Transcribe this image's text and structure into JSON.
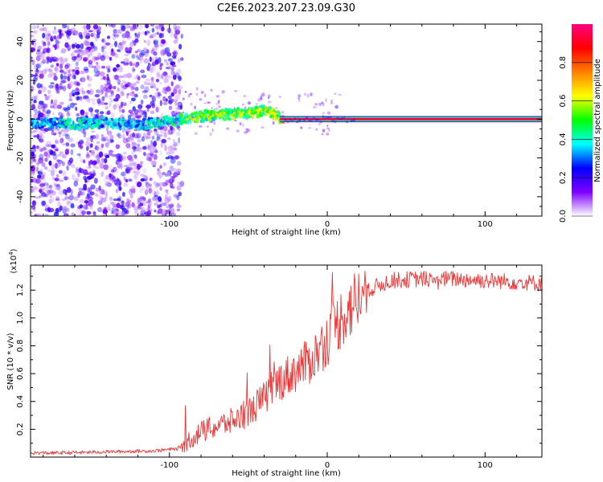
{
  "title": "C2E6.2023.207.23.09.G30",
  "chart_data": [
    {
      "type": "heatmap",
      "title": "C2E6.2023.207.23.09.G30",
      "xlabel": "Height of straight line (km)",
      "ylabel": "Frequency (Hz)",
      "xlim": [
        -188,
        136
      ],
      "ylim": [
        -50,
        49
      ],
      "x_ticks": [
        -100,
        0,
        100
      ],
      "x_tick_labels": [
        "-100",
        "0",
        "100"
      ],
      "y_ticks": [
        -40,
        -20,
        0,
        20,
        40
      ],
      "y_tick_labels": [
        "-40",
        "-20",
        "0",
        "20",
        "40"
      ],
      "colorbar": {
        "label": "Normalized spectral amplitude",
        "range": [
          0,
          1
        ],
        "ticks": [
          0,
          0.2,
          0.4,
          0.6,
          0.8
        ],
        "tick_labels": [
          "0.0",
          "0.2",
          "0.4",
          "0.6",
          "0.8"
        ],
        "colormap": [
          "#ffffff",
          "#7f00ff",
          "#0000ff",
          "#00ffff",
          "#00ff00",
          "#ffff00",
          "#ff7f00",
          "#ff0000",
          "#ff007f"
        ]
      },
      "main_line": [
        {
          "x": -188,
          "f": -2,
          "amp": 0.35
        },
        {
          "x": -160,
          "f": -2.5,
          "amp": 0.45
        },
        {
          "x": -140,
          "f": -2,
          "amp": 0.4
        },
        {
          "x": -120,
          "f": -3,
          "amp": 0.4
        },
        {
          "x": -100,
          "f": -1,
          "amp": 0.45
        },
        {
          "x": -90,
          "f": 0,
          "amp": 0.5
        },
        {
          "x": -75,
          "f": 2,
          "amp": 0.55
        },
        {
          "x": -60,
          "f": 2.5,
          "amp": 0.55
        },
        {
          "x": -45,
          "f": 4,
          "amp": 0.6
        },
        {
          "x": -38,
          "f": 4.5,
          "amp": 0.6
        },
        {
          "x": -30,
          "f": 0.5,
          "amp": 0.7
        },
        {
          "x": -20,
          "f": 0,
          "amp": 0.85
        },
        {
          "x": 0,
          "f": 0,
          "amp": 0.9
        },
        {
          "x": 136,
          "f": 0,
          "amp": 0.9
        }
      ]
    },
    {
      "type": "line",
      "xlabel": "Height of straight line (km)",
      "ylabel": "SNR (10 * v/v)",
      "scale_label": "(x10",
      "scale_exponent": "4",
      "scale_close": ")",
      "xlim": [
        -188,
        136
      ],
      "ylim": [
        0,
        1.38
      ],
      "x_ticks": [
        -100,
        0,
        100
      ],
      "x_tick_labels": [
        "-100",
        "0",
        "100"
      ],
      "y_ticks": [
        0.2,
        0.4,
        0.6,
        0.8,
        1.0,
        1.2
      ],
      "y_tick_labels": [
        "0.2",
        "0.4",
        "0.6",
        "0.8",
        "1.0",
        "1.2"
      ],
      "series": [
        {
          "name": "SNR",
          "color": "#ee3333",
          "x": [
            -188,
            -170,
            -150,
            -130,
            -110,
            -95,
            -88,
            -80,
            -70,
            -60,
            -50,
            -40,
            -30,
            -20,
            -10,
            0,
            10,
            20,
            30,
            40,
            60,
            80,
            100,
            120,
            136
          ],
          "values": [
            0.03,
            0.03,
            0.035,
            0.04,
            0.045,
            0.06,
            0.12,
            0.18,
            0.22,
            0.26,
            0.32,
            0.42,
            0.55,
            0.62,
            0.7,
            0.85,
            1.02,
            1.14,
            1.22,
            1.27,
            1.28,
            1.28,
            1.27,
            1.26,
            1.25
          ]
        }
      ]
    }
  ]
}
